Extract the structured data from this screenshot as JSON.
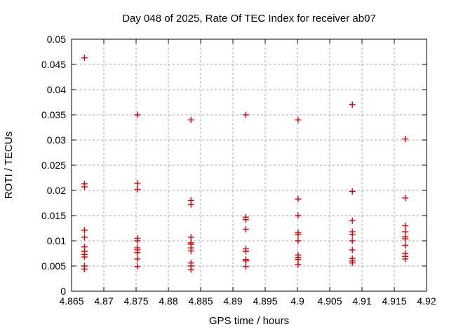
{
  "chart_data": {
    "type": "scatter",
    "title": "Day 048 of 2025, Rate Of TEC Index for receiver ab07",
    "xlabel": "GPS time / hours",
    "ylabel": "ROTI / TECUs",
    "xlim": [
      4.865,
      4.92
    ],
    "ylim": [
      0,
      0.05
    ],
    "xticks": [
      4.865,
      4.87,
      4.875,
      4.88,
      4.885,
      4.89,
      4.895,
      4.9,
      4.905,
      4.91,
      4.915,
      4.92
    ],
    "xtick_labels": [
      "4.865",
      "4.87",
      "4.875",
      "4.88",
      "4.885",
      "4.89",
      "4.895",
      "4.9",
      "4.905",
      "4.91",
      "4.915",
      "4.92"
    ],
    "yticks": [
      0,
      0.005,
      0.01,
      0.015,
      0.02,
      0.025,
      0.03,
      0.035,
      0.04,
      0.045,
      0.05
    ],
    "ytick_labels": [
      "0",
      "0.005",
      "0.01",
      "0.015",
      "0.02",
      "0.025",
      "0.03",
      "0.035",
      "0.04",
      "0.045",
      "0.05"
    ],
    "grid": true,
    "legend": "none",
    "marker": {
      "shape": "plus",
      "color": "#e00000",
      "size": 9
    },
    "grid_color": "#a6a6a6",
    "axis_color": "#000000",
    "background_color": "#ffffff",
    "series": [
      {
        "name": "ROTI",
        "points": [
          [
            4.867,
            0.0463
          ],
          [
            4.867,
            0.0213
          ],
          [
            4.867,
            0.0207
          ],
          [
            4.867,
            0.0121
          ],
          [
            4.867,
            0.0107
          ],
          [
            4.867,
            0.0088
          ],
          [
            4.867,
            0.0079
          ],
          [
            4.867,
            0.0073
          ],
          [
            4.867,
            0.0068
          ],
          [
            4.867,
            0.005
          ],
          [
            4.867,
            0.0044
          ],
          [
            4.8752,
            0.035
          ],
          [
            4.8752,
            0.0214
          ],
          [
            4.8752,
            0.0202
          ],
          [
            4.8752,
            0.0105
          ],
          [
            4.8752,
            0.01
          ],
          [
            4.8752,
            0.0086
          ],
          [
            4.8752,
            0.0082
          ],
          [
            4.8752,
            0.0077
          ],
          [
            4.8752,
            0.0064
          ],
          [
            4.8752,
            0.0049
          ],
          [
            4.8835,
            0.034
          ],
          [
            4.8835,
            0.018
          ],
          [
            4.8835,
            0.0172
          ],
          [
            4.8835,
            0.0107
          ],
          [
            4.8835,
            0.0096
          ],
          [
            4.8835,
            0.0093
          ],
          [
            4.8835,
            0.0086
          ],
          [
            4.8835,
            0.008
          ],
          [
            4.8835,
            0.0056
          ],
          [
            4.8835,
            0.005
          ],
          [
            4.8835,
            0.0043
          ],
          [
            4.892,
            0.035
          ],
          [
            4.892,
            0.0147
          ],
          [
            4.892,
            0.0142
          ],
          [
            4.892,
            0.0123
          ],
          [
            4.892,
            0.0084
          ],
          [
            4.892,
            0.0079
          ],
          [
            4.892,
            0.0063
          ],
          [
            4.892,
            0.006
          ],
          [
            4.892,
            0.0049
          ],
          [
            4.9001,
            0.034
          ],
          [
            4.9001,
            0.0183
          ],
          [
            4.9001,
            0.015
          ],
          [
            4.9001,
            0.0116
          ],
          [
            4.9001,
            0.0113
          ],
          [
            4.9001,
            0.01
          ],
          [
            4.9001,
            0.0072
          ],
          [
            4.9001,
            0.0067
          ],
          [
            4.9001,
            0.0063
          ],
          [
            4.9001,
            0.0053
          ],
          [
            4.9085,
            0.037
          ],
          [
            4.9085,
            0.0198
          ],
          [
            4.9085,
            0.014
          ],
          [
            4.9085,
            0.0118
          ],
          [
            4.9085,
            0.0113
          ],
          [
            4.9085,
            0.01
          ],
          [
            4.9085,
            0.0082
          ],
          [
            4.9085,
            0.0065
          ],
          [
            4.9085,
            0.006
          ],
          [
            4.9085,
            0.0056
          ],
          [
            4.9167,
            0.0302
          ],
          [
            4.9167,
            0.0185
          ],
          [
            4.9167,
            0.013
          ],
          [
            4.9167,
            0.0118
          ],
          [
            4.9167,
            0.0108
          ],
          [
            4.9167,
            0.0104
          ],
          [
            4.9167,
            0.0091
          ],
          [
            4.9167,
            0.0075
          ],
          [
            4.9167,
            0.0069
          ],
          [
            4.9167,
            0.0064
          ]
        ]
      }
    ]
  }
}
